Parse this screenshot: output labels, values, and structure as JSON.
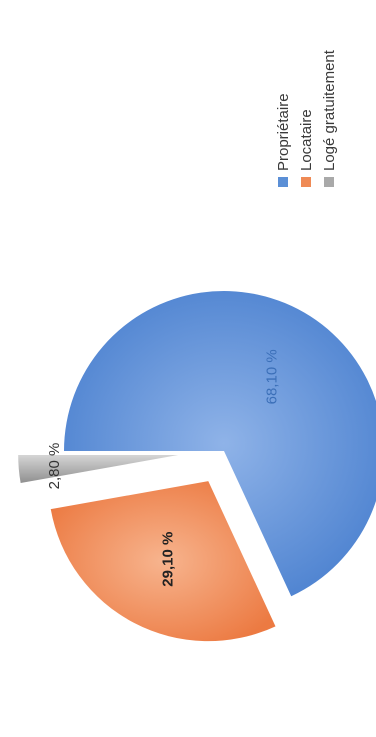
{
  "chart_data": {
    "type": "pie",
    "title": "",
    "orientation": "rotated-90",
    "legend_position": "right",
    "slices": [
      {
        "label": "Propriétaire",
        "value": 68.1,
        "value_label": "68,10 %",
        "color": "#5b8fd6",
        "exploded": false
      },
      {
        "label": "Locataire",
        "value": 29.1,
        "value_label": "29,10 %",
        "color": "#ef8a55",
        "exploded": true
      },
      {
        "label": "Logé gratuitement",
        "value": 2.8,
        "value_label": "2,80 %",
        "color": "#a9a9a9",
        "exploded": true
      }
    ]
  }
}
